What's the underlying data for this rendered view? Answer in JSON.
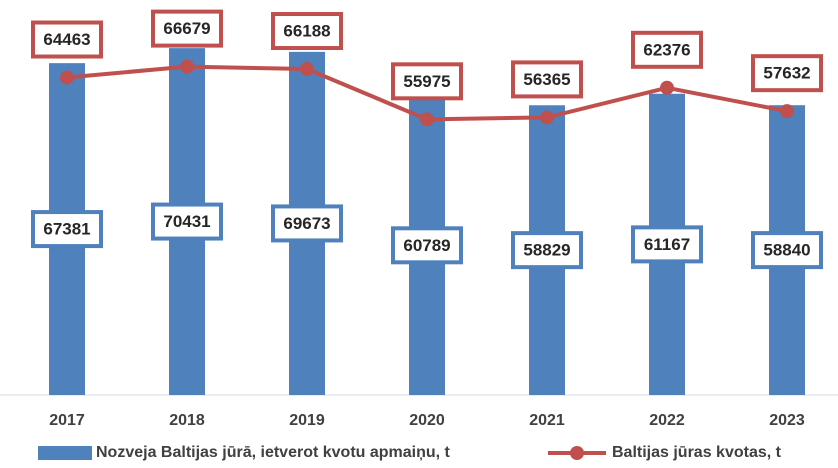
{
  "chart_data": {
    "type": "bar",
    "categories": [
      "2017",
      "2018",
      "2019",
      "2020",
      "2021",
      "2022",
      "2023"
    ],
    "series": [
      {
        "name": "Nozveja Baltijas jūrā, ietverot kvotu apmaiņu, t",
        "color": "#4f81bd",
        "values": [
          67381,
          70431,
          69673,
          60789,
          58829,
          61167,
          58840
        ]
      },
      {
        "name": "Baltijas jūras kvotas, t",
        "type": "line",
        "color": "#c0504d",
        "values": [
          64463,
          66679,
          66188,
          55975,
          56365,
          62376,
          57632
        ]
      }
    ],
    "ylim": [
      0,
      80000
    ],
    "grid": false,
    "legend": "bottom"
  }
}
